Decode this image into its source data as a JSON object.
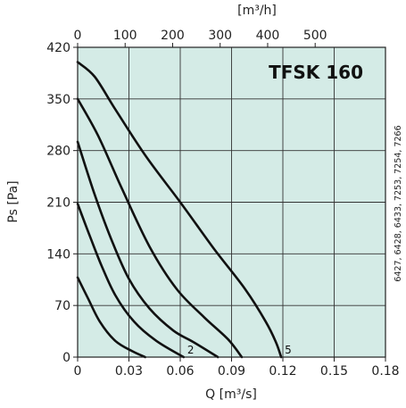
{
  "chart_data": {
    "type": "line",
    "title": "TFSK 160",
    "xlabel": "Q [m³/s]",
    "ylabel": "Ps [Pa]",
    "x2label": "[m³/h]",
    "side_note": "6427, 6428, 6433, 7253, 7254, 7266",
    "xlim": [
      0,
      0.18
    ],
    "ylim": [
      0,
      420
    ],
    "x2lim": [
      0,
      648
    ],
    "xticks": [
      "0",
      "0.03",
      "0.06",
      "0.09",
      "0.12",
      "0.15",
      "0.18"
    ],
    "xtick_values": [
      0,
      0.03,
      0.06,
      0.09,
      0.12,
      0.15,
      0.18
    ],
    "yticks": [
      "0",
      "70",
      "140",
      "210",
      "280",
      "350",
      "420"
    ],
    "ytick_values": [
      0,
      70,
      140,
      210,
      280,
      350,
      420
    ],
    "x2ticks": [
      "0",
      "100",
      "200",
      "300",
      "400",
      "500"
    ],
    "x2tick_values": [
      0,
      100,
      200,
      300,
      400,
      500
    ],
    "grid": true,
    "background_color": "#d4ebe6",
    "line_color": "#111111",
    "series": [
      {
        "label": "",
        "points": [
          [
            0,
            108
          ],
          [
            0.006,
            80
          ],
          [
            0.013,
            48
          ],
          [
            0.022,
            22
          ],
          [
            0.032,
            8
          ],
          [
            0.0395,
            0
          ]
        ]
      },
      {
        "label": "2",
        "points": [
          [
            0,
            208
          ],
          [
            0.007,
            165
          ],
          [
            0.014,
            124
          ],
          [
            0.022,
            84
          ],
          [
            0.033,
            48
          ],
          [
            0.046,
            22
          ],
          [
            0.062,
            0
          ]
        ]
      },
      {
        "label": "",
        "points": [
          [
            0,
            292
          ],
          [
            0.01,
            220
          ],
          [
            0.02,
            158
          ],
          [
            0.03,
            106
          ],
          [
            0.042,
            66
          ],
          [
            0.056,
            36
          ],
          [
            0.068,
            20
          ],
          [
            0.082,
            0
          ]
        ]
      },
      {
        "label": "",
        "points": [
          [
            0,
            350
          ],
          [
            0.012,
            300
          ],
          [
            0.026,
            228
          ],
          [
            0.042,
            150
          ],
          [
            0.058,
            92
          ],
          [
            0.074,
            54
          ],
          [
            0.088,
            24
          ],
          [
            0.096,
            0
          ]
        ]
      },
      {
        "label": "5",
        "points": [
          [
            0,
            400
          ],
          [
            0.01,
            380
          ],
          [
            0.022,
            336
          ],
          [
            0.04,
            272
          ],
          [
            0.06,
            210
          ],
          [
            0.08,
            146
          ],
          [
            0.098,
            92
          ],
          [
            0.11,
            48
          ],
          [
            0.116,
            20
          ],
          [
            0.119,
            0
          ]
        ]
      }
    ]
  }
}
